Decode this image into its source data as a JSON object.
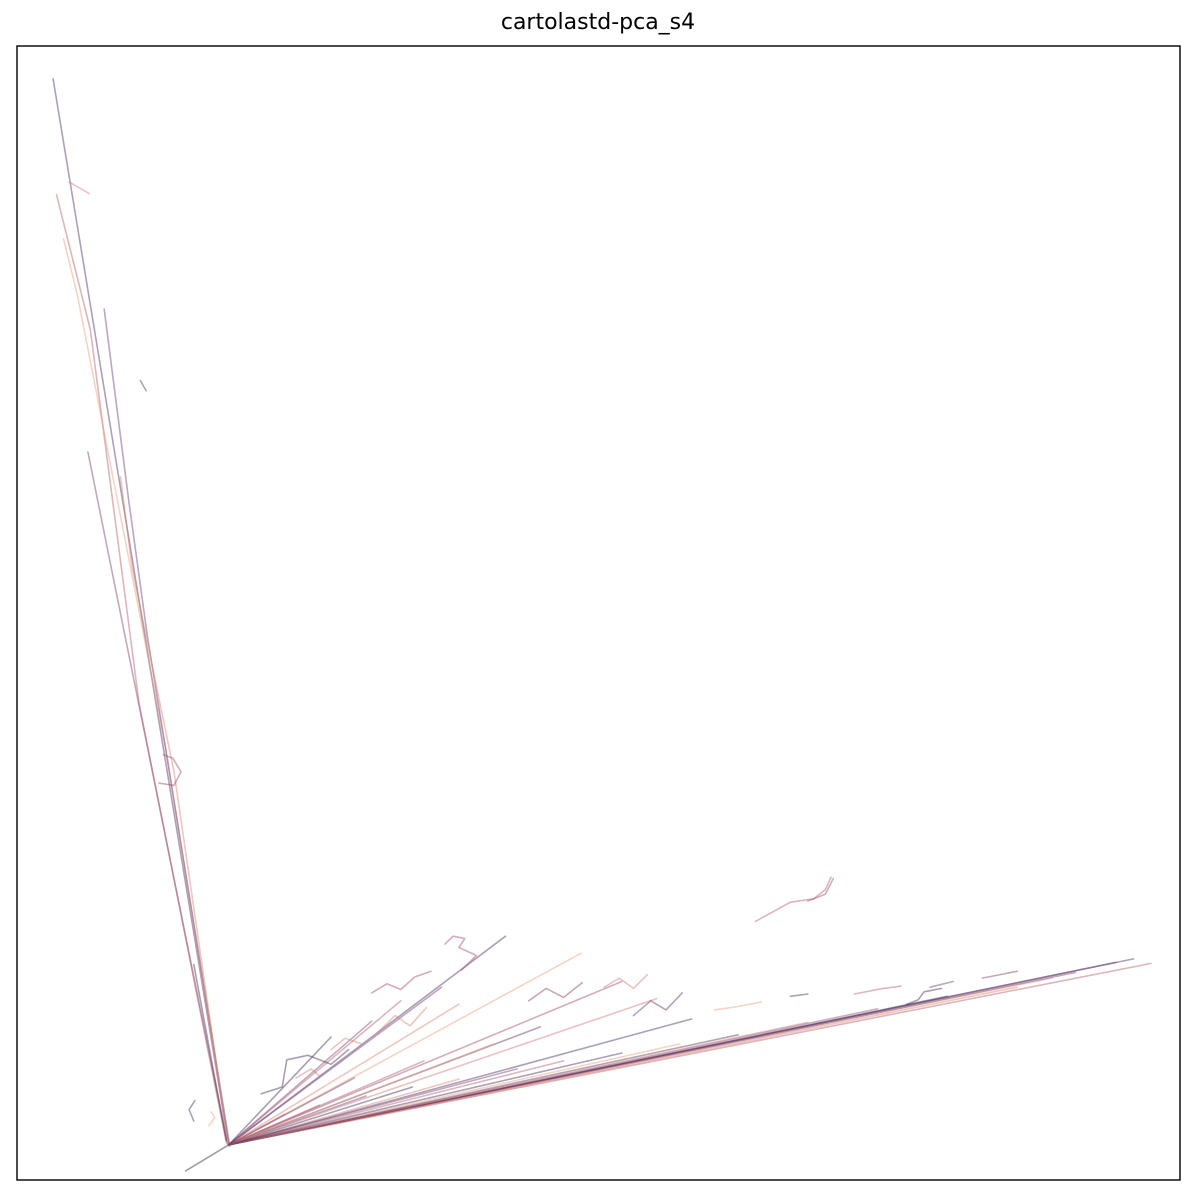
{
  "chart_data": {
    "type": "line",
    "title": "cartolastd-pca_s4",
    "xlabel": "",
    "ylabel": "",
    "grid": false,
    "legend": "none",
    "ticks": "none",
    "xlim": [
      0,
      100
    ],
    "ylim": [
      0,
      100
    ],
    "series": [
      {
        "color": "#4a2c5e",
        "x": [
          3.1,
          18.2
        ],
        "y": [
          97.1,
          3.1
        ]
      },
      {
        "color": "#7a3e6b",
        "x": [
          6.1,
          18.1
        ],
        "y": [
          64.2,
          3.2
        ]
      },
      {
        "color": "#b45a6a",
        "x": [
          3.4,
          6.3,
          10.5,
          18.0
        ],
        "y": [
          86.9,
          75.0,
          42.0,
          3.3
        ]
      },
      {
        "color": "#e8a07a",
        "x": [
          4.0,
          5.2,
          12.8,
          18.2
        ],
        "y": [
          83.0,
          78.0,
          38.0,
          3.0
        ]
      },
      {
        "color": "#6b3a74",
        "x": [
          7.5,
          9.6,
          11.2,
          18.3
        ],
        "y": [
          76.8,
          60.0,
          48.0,
          3.0
        ]
      },
      {
        "color": "#d9826e",
        "x": [
          8.9,
          9.9,
          13.5,
          16.9,
          18.1
        ],
        "y": [
          62.0,
          54.0,
          36.0,
          12.0,
          3.2
        ]
      },
      {
        "color": "#3f2a55",
        "x": [
          15.2,
          18.0
        ],
        "y": [
          19.0,
          3.5
        ]
      },
      {
        "color": "#9b4a6e",
        "x": [
          12.6,
          13.4,
          14.1,
          13.5,
          12.2
        ],
        "y": [
          37.5,
          37.2,
          36.0,
          34.8,
          35.0
        ]
      },
      {
        "color": "#c97a78",
        "x": [
          4.5,
          6.2
        ],
        "y": [
          88.0,
          87.0
        ]
      },
      {
        "color": "#5c3363",
        "x": [
          10.6,
          11.1
        ],
        "y": [
          70.5,
          69.6
        ]
      },
      {
        "color": "#2f2240",
        "x": [
          14.5,
          18.2
        ],
        "y": [
          0.8,
          3.1
        ]
      },
      {
        "color": "#4a2c5e",
        "x": [
          18.2,
          96.0
        ],
        "y": [
          3.1,
          19.5
        ]
      },
      {
        "color": "#b45a6a",
        "x": [
          18.2,
          97.5
        ],
        "y": [
          3.1,
          19.1
        ]
      },
      {
        "color": "#6b3a74",
        "x": [
          18.2,
          94.5
        ],
        "y": [
          3.1,
          19.2
        ]
      },
      {
        "color": "#e8a07a",
        "x": [
          18.2,
          89.0
        ],
        "y": [
          3.1,
          17.8
        ]
      },
      {
        "color": "#7a3e6b",
        "x": [
          18.2,
          91.0
        ],
        "y": [
          3.1,
          18.3
        ]
      },
      {
        "color": "#d9826e",
        "x": [
          18.2,
          86.0
        ],
        "y": [
          3.1,
          17.0
        ]
      },
      {
        "color": "#3f2a55",
        "x": [
          18.2,
          80.0
        ],
        "y": [
          3.1,
          16.2
        ]
      },
      {
        "color": "#9b4a6e",
        "x": [
          18.2,
          74.0
        ],
        "y": [
          3.1,
          15.1
        ]
      },
      {
        "color": "#c97a78",
        "x": [
          18.2,
          68.0
        ],
        "y": [
          3.1,
          13.9
        ]
      },
      {
        "color": "#5c3363",
        "x": [
          18.2,
          62.0
        ],
        "y": [
          3.1,
          12.8
        ]
      },
      {
        "color": "#e8a07a",
        "x": [
          18.2,
          57.0
        ],
        "y": [
          3.1,
          12.0
        ]
      },
      {
        "color": "#4a2c5e",
        "x": [
          18.2,
          52.0
        ],
        "y": [
          3.1,
          11.2
        ]
      },
      {
        "color": "#b45a6a",
        "x": [
          18.2,
          47.0
        ],
        "y": [
          3.1,
          10.5
        ]
      },
      {
        "color": "#7a3e6b",
        "x": [
          18.2,
          43.0
        ],
        "y": [
          3.1,
          9.8
        ]
      },
      {
        "color": "#d9826e",
        "x": [
          18.2,
          38.0
        ],
        "y": [
          3.1,
          8.9
        ]
      },
      {
        "color": "#3f2a55",
        "x": [
          18.2,
          34.0
        ],
        "y": [
          3.1,
          8.2
        ]
      },
      {
        "color": "#6b3a74",
        "x": [
          18.2,
          30.0
        ],
        "y": [
          3.1,
          7.4
        ]
      },
      {
        "color": "#9b4a6e",
        "x": [
          18.2,
          26.0
        ],
        "y": [
          3.1,
          6.6
        ]
      },
      {
        "color": "#c97a78",
        "x": [
          18.2,
          23.0
        ],
        "y": [
          3.1,
          5.8
        ]
      },
      {
        "color": "#4a2c5e",
        "x": [
          18.2,
          42.0
        ],
        "y": [
          3.1,
          21.5
        ]
      },
      {
        "color": "#e8a07a",
        "x": [
          18.2,
          48.5
        ],
        "y": [
          3.1,
          20.0
        ]
      },
      {
        "color": "#6b3a74",
        "x": [
          18.2,
          36.5
        ],
        "y": [
          3.1,
          17.0
        ]
      },
      {
        "color": "#d9826e",
        "x": [
          18.2,
          38.0
        ],
        "y": [
          3.1,
          15.5
        ]
      },
      {
        "color": "#b45a6a",
        "x": [
          18.2,
          33.0
        ],
        "y": [
          3.1,
          15.8
        ]
      },
      {
        "color": "#7a3e6b",
        "x": [
          18.2,
          30.5
        ],
        "y": [
          3.1,
          14.0
        ]
      },
      {
        "color": "#3f2a55",
        "x": [
          18.2,
          27.0
        ],
        "y": [
          3.1,
          12.6
        ]
      },
      {
        "color": "#9b4a6e",
        "x": [
          18.2,
          52.0
        ],
        "y": [
          3.1,
          17.5
        ]
      },
      {
        "color": "#c97a78",
        "x": [
          18.2,
          55.0
        ],
        "y": [
          3.1,
          16.0
        ]
      },
      {
        "color": "#5c3363",
        "x": [
          18.2,
          45.0
        ],
        "y": [
          3.1,
          13.5
        ]
      },
      {
        "color": "#e8a07a",
        "x": [
          18.2,
          41.0
        ],
        "y": [
          3.1,
          12.0
        ]
      },
      {
        "color": "#4a2c5e",
        "x": [
          18.2,
          58.0
        ],
        "y": [
          3.1,
          14.2
        ]
      },
      {
        "color": "#b45a6a",
        "x": [
          18.2,
          35.0
        ],
        "y": [
          3.1,
          10.5
        ]
      },
      {
        "color": "#6b3a74",
        "x": [
          18.2,
          29.0
        ],
        "y": [
          3.1,
          9.0
        ]
      },
      {
        "color": "#3f2a55",
        "x": [
          21.0,
          22.8,
          23.2,
          25.0,
          27.0,
          28.5
        ],
        "y": [
          7.6,
          8.2,
          10.6,
          11.0,
          10.2,
          11.5
        ]
      },
      {
        "color": "#9b4a6e",
        "x": [
          36.8,
          37.5,
          38.5,
          38.0,
          39.5,
          38.2
        ],
        "y": [
          20.8,
          21.5,
          21.3,
          20.5,
          19.8,
          18.5
        ]
      },
      {
        "color": "#d9826e",
        "x": [
          31.0,
          32.5,
          33.8,
          35.2
        ],
        "y": [
          13.0,
          14.5,
          13.6,
          15.2
        ]
      },
      {
        "color": "#7a3e6b",
        "x": [
          44.0,
          45.5,
          47.0,
          48.6
        ],
        "y": [
          15.8,
          16.9,
          16.1,
          17.4
        ]
      },
      {
        "color": "#c97a78",
        "x": [
          50.5,
          51.8,
          53.0,
          54.2
        ],
        "y": [
          17.0,
          17.8,
          16.9,
          18.1
        ]
      },
      {
        "color": "#5c3363",
        "x": [
          53.0,
          54.5,
          55.8,
          57.2
        ],
        "y": [
          14.5,
          15.8,
          15.0,
          16.5
        ]
      },
      {
        "color": "#e8a07a",
        "x": [
          60.0,
          62.0,
          64.0
        ],
        "y": [
          15.0,
          15.3,
          15.7
        ]
      },
      {
        "color": "#4a2c5e",
        "x": [
          66.5,
          68.0
        ],
        "y": [
          16.2,
          16.4
        ]
      },
      {
        "color": "#b45a6a",
        "x": [
          72.0,
          74.5,
          76.0
        ],
        "y": [
          16.4,
          16.9,
          17.1
        ]
      },
      {
        "color": "#6b3a74",
        "x": [
          78.5,
          80.5
        ],
        "y": [
          17.0,
          17.5
        ]
      },
      {
        "color": "#7a3e6b",
        "x": [
          83.0,
          86.0
        ],
        "y": [
          17.8,
          18.4
        ]
      },
      {
        "color": "#3f2a55",
        "x": [
          76.5,
          77.5,
          78.0,
          79.5
        ],
        "y": [
          15.5,
          15.9,
          16.6,
          16.9
        ]
      },
      {
        "color": "#9b4a6e",
        "x": [
          30.5,
          31.8,
          33.0,
          34.2,
          35.6
        ],
        "y": [
          16.5,
          17.3,
          16.8,
          17.9,
          18.4
        ]
      },
      {
        "color": "#d9826e",
        "x": [
          27.0,
          28.2,
          29.6
        ],
        "y": [
          11.5,
          12.5,
          12.0
        ]
      },
      {
        "color": "#c97a78",
        "x": [
          24.0,
          25.3,
          26.0
        ],
        "y": [
          9.0,
          9.8,
          9.2
        ]
      },
      {
        "color": "#b45a6a",
        "x": [
          63.5,
          66.5,
          68.5,
          69.5,
          70.0
        ],
        "y": [
          22.8,
          24.5,
          24.8,
          25.6,
          26.7
        ]
      },
      {
        "color": "#9b4a6e",
        "x": [
          68.0,
          69.5,
          70.2
        ],
        "y": [
          24.6,
          25.2,
          26.6
        ]
      },
      {
        "color": "#4a2c5e",
        "x": [
          15.2,
          14.8,
          15.3
        ],
        "y": [
          5.2,
          6.2,
          7.0
        ]
      },
      {
        "color": "#e8a07a",
        "x": [
          16.5,
          17.0,
          16.7
        ],
        "y": [
          4.8,
          5.5,
          6.0
        ]
      }
    ]
  }
}
